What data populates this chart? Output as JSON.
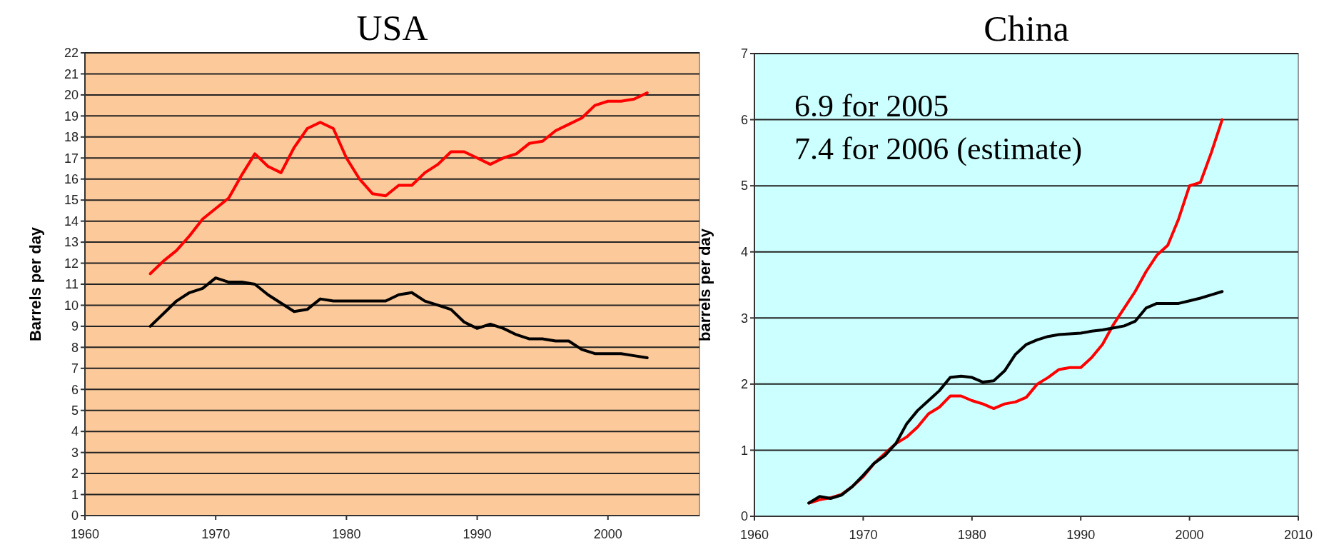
{
  "chart_data": [
    {
      "type": "line",
      "title": "USA",
      "ylabel": "Barrels per day",
      "x": [
        1965,
        1966,
        1967,
        1968,
        1969,
        1970,
        1971,
        1972,
        1973,
        1974,
        1975,
        1976,
        1977,
        1978,
        1979,
        1980,
        1981,
        1982,
        1983,
        1984,
        1985,
        1986,
        1987,
        1988,
        1989,
        1990,
        1991,
        1992,
        1993,
        1994,
        1995,
        1996,
        1997,
        1998,
        1999,
        2000,
        2001,
        2002,
        2003
      ],
      "series": [
        {
          "color": "#ff0000",
          "values": [
            11.5,
            12.1,
            12.6,
            13.3,
            14.1,
            14.6,
            15.1,
            16.2,
            17.2,
            16.6,
            16.3,
            17.5,
            18.4,
            18.7,
            18.4,
            17.0,
            16.0,
            15.3,
            15.2,
            15.7,
            15.7,
            16.3,
            16.7,
            17.3,
            17.3,
            17.0,
            16.7,
            17.0,
            17.2,
            17.7,
            17.8,
            18.3,
            18.6,
            18.9,
            19.5,
            19.7,
            19.7,
            19.8,
            20.1
          ]
        },
        {
          "color": "#000000",
          "values": [
            9.0,
            9.6,
            10.2,
            10.6,
            10.8,
            11.3,
            11.1,
            11.1,
            11.0,
            10.5,
            10.1,
            9.7,
            9.8,
            10.3,
            10.2,
            10.2,
            10.2,
            10.2,
            10.2,
            10.5,
            10.6,
            10.2,
            10.0,
            9.8,
            9.2,
            8.9,
            9.1,
            8.9,
            8.6,
            8.4,
            8.4,
            8.3,
            8.3,
            7.9,
            7.7,
            7.7,
            7.7,
            7.6,
            7.5
          ]
        }
      ],
      "xlim": [
        1960,
        2007
      ],
      "xticks": [
        1960,
        1970,
        1980,
        1990,
        2000
      ],
      "ylim": [
        0,
        22
      ],
      "yticks": [
        0,
        1,
        2,
        3,
        4,
        5,
        6,
        7,
        8,
        9,
        10,
        11,
        12,
        13,
        14,
        15,
        16,
        17,
        18,
        19,
        20,
        21,
        22
      ],
      "grid": "y"
    },
    {
      "type": "line",
      "title": "China",
      "ylabel": "barrels per day",
      "annotations": [
        "6.9 for 2005",
        "7.4 for 2006 (estimate)"
      ],
      "x": [
        1965,
        1966,
        1967,
        1968,
        1969,
        1970,
        1971,
        1972,
        1973,
        1974,
        1975,
        1976,
        1977,
        1978,
        1979,
        1980,
        1981,
        1982,
        1983,
        1984,
        1985,
        1986,
        1987,
        1988,
        1989,
        1990,
        1991,
        1992,
        1993,
        1994,
        1995,
        1996,
        1997,
        1998,
        1999,
        2000,
        2001,
        2002,
        2003
      ],
      "series": [
        {
          "color": "#ff0000",
          "values": [
            0.2,
            0.25,
            0.28,
            0.33,
            0.45,
            0.6,
            0.8,
            0.95,
            1.1,
            1.2,
            1.35,
            1.55,
            1.65,
            1.82,
            1.82,
            1.75,
            1.7,
            1.63,
            1.7,
            1.73,
            1.8,
            2.0,
            2.1,
            2.22,
            2.25,
            2.25,
            2.4,
            2.6,
            2.9,
            3.15,
            3.4,
            3.7,
            3.95,
            4.1,
            4.5,
            5.0,
            5.05,
            5.5,
            6.0
          ]
        },
        {
          "color": "#000000",
          "values": [
            0.2,
            0.3,
            0.27,
            0.32,
            0.45,
            0.62,
            0.8,
            0.92,
            1.1,
            1.4,
            1.6,
            1.75,
            1.9,
            2.1,
            2.12,
            2.1,
            2.03,
            2.05,
            2.2,
            2.45,
            2.6,
            2.67,
            2.72,
            2.75,
            2.76,
            2.77,
            2.8,
            2.82,
            2.85,
            2.88,
            2.95,
            3.15,
            3.22,
            3.22,
            3.22,
            3.26,
            3.3,
            3.35,
            3.4
          ]
        }
      ],
      "xlim": [
        1960,
        2010
      ],
      "xticks": [
        1960,
        1970,
        1980,
        1990,
        2000,
        2010
      ],
      "ylim": [
        0,
        7
      ],
      "yticks": [
        0,
        1,
        2,
        3,
        4,
        5,
        6,
        7
      ],
      "grid": "y"
    }
  ]
}
